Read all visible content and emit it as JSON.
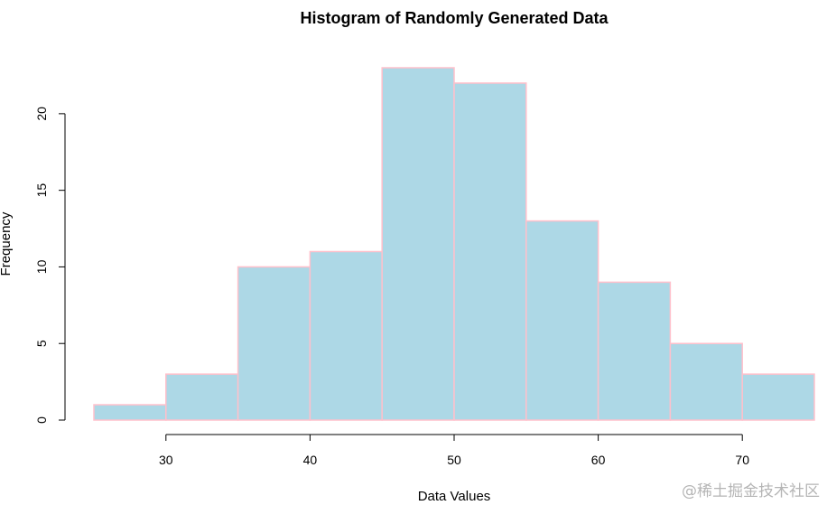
{
  "chart_data": {
    "type": "bar",
    "title": "Histogram of Randomly Generated Data",
    "xlabel": "Data Values",
    "ylabel": "Frequency",
    "bins": [
      [
        25,
        30
      ],
      [
        30,
        35
      ],
      [
        35,
        40
      ],
      [
        40,
        45
      ],
      [
        45,
        50
      ],
      [
        50,
        55
      ],
      [
        55,
        60
      ],
      [
        60,
        65
      ],
      [
        65,
        70
      ],
      [
        70,
        75
      ]
    ],
    "values": [
      1,
      3,
      10,
      11,
      23,
      22,
      13,
      9,
      5,
      3
    ],
    "x_ticks": [
      "30",
      "40",
      "50",
      "60",
      "70"
    ],
    "y_ticks": [
      "0",
      "5",
      "10",
      "15",
      "20"
    ],
    "xlim": [
      25,
      75
    ],
    "ylim": [
      0,
      23
    ],
    "grid": false,
    "bar_fill": "#add8e6",
    "bar_border": "#ffc0cb"
  },
  "watermark": "@稀土掘金技术社区"
}
